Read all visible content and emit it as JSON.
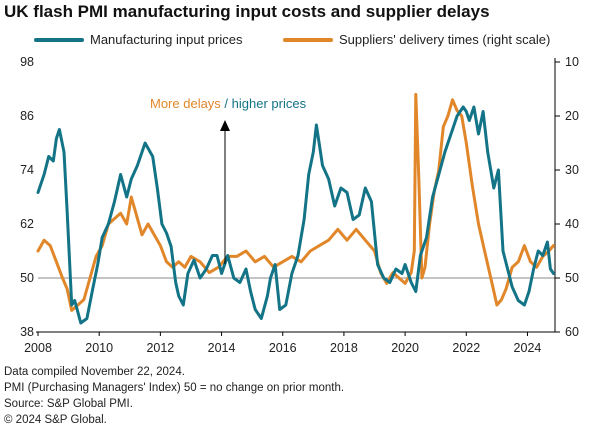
{
  "title": "UK flash PMI manufacturing input costs and supplier delays",
  "notes": [
    "Data compiled November 22, 2024.",
    "PMI (Purchasing Managers' Index) 50 = no change on prior month.",
    "Source: S&P Global PMI.",
    "© 2024 S&P Global."
  ],
  "colors": {
    "teal": "#137487",
    "orange": "#e1872a",
    "axis": "#000000"
  },
  "chart_data": {
    "type": "line",
    "x_ticks": [
      "2008",
      "2010",
      "2012",
      "2014",
      "2016",
      "2018",
      "2020",
      "2022",
      "2024"
    ],
    "xlim": [
      2008,
      2024.9
    ],
    "y_left": {
      "ticks": [
        "38",
        "50",
        "62",
        "74",
        "86",
        "98"
      ],
      "lim": [
        38,
        98
      ]
    },
    "y_right": {
      "ticks": [
        "10",
        "20",
        "30",
        "40",
        "50",
        "60"
      ],
      "lim": [
        10,
        60
      ],
      "reversed": true,
      "label": "right scale"
    },
    "reference_line_y": 50,
    "annotation": {
      "part1": "More delays",
      "sep": " / ",
      "part2": "higher prices"
    },
    "series": [
      {
        "name": "Manufacturing input prices",
        "axis": "left",
        "color": "#137487",
        "x": [
          2008.0,
          2008.2,
          2008.35,
          2008.5,
          2008.6,
          2008.7,
          2008.85,
          2008.95,
          2009.1,
          2009.2,
          2009.4,
          2009.6,
          2009.8,
          2009.95,
          2010.1,
          2010.3,
          2010.5,
          2010.7,
          2010.9,
          2011.05,
          2011.25,
          2011.5,
          2011.75,
          2011.9,
          2012.05,
          2012.2,
          2012.35,
          2012.5,
          2012.6,
          2012.75,
          2012.9,
          2013.1,
          2013.3,
          2013.5,
          2013.7,
          2013.85,
          2014.0,
          2014.2,
          2014.4,
          2014.6,
          2014.8,
          2014.95,
          2015.1,
          2015.3,
          2015.5,
          2015.6,
          2015.75,
          2015.9,
          2016.1,
          2016.3,
          2016.5,
          2016.7,
          2016.85,
          2017.0,
          2017.1,
          2017.3,
          2017.5,
          2017.7,
          2017.9,
          2018.1,
          2018.3,
          2018.5,
          2018.7,
          2018.9,
          2019.1,
          2019.3,
          2019.5,
          2019.7,
          2019.9,
          2020.0,
          2020.2,
          2020.35,
          2020.5,
          2020.7,
          2020.9,
          2021.1,
          2021.3,
          2021.5,
          2021.7,
          2021.9,
          2022.0,
          2022.1,
          2022.25,
          2022.4,
          2022.55,
          2022.7,
          2022.9,
          2023.05,
          2023.2,
          2023.35,
          2023.5,
          2023.7,
          2023.9,
          2024.05,
          2024.2,
          2024.35,
          2024.5,
          2024.65,
          2024.75,
          2024.85
        ],
        "y": [
          69,
          73,
          77,
          76,
          81,
          83,
          78,
          65,
          44,
          45,
          40,
          41,
          48,
          53,
          59,
          62,
          67,
          73,
          68,
          72,
          75,
          80,
          77,
          70,
          62,
          60,
          57,
          49,
          46,
          44,
          51,
          54,
          50,
          52,
          55,
          55,
          51,
          55,
          50,
          49,
          52,
          47,
          43,
          41,
          46,
          50,
          53,
          43,
          44,
          51,
          55,
          63,
          73,
          78,
          84,
          75,
          72,
          66,
          70,
          69,
          63,
          64,
          70,
          67,
          53,
          50,
          49,
          52,
          51,
          53,
          49,
          47,
          55,
          59,
          68,
          73,
          78,
          82,
          86,
          88,
          87,
          85,
          88,
          82,
          87,
          78,
          70,
          74,
          56,
          52,
          48,
          45,
          44,
          47,
          52,
          56,
          55,
          58,
          52,
          51
        ]
      },
      {
        "name": "Suppliers' delivery times (right scale)",
        "axis": "right",
        "color": "#e1872a",
        "x": [
          2008.0,
          2008.2,
          2008.4,
          2008.6,
          2008.8,
          2008.95,
          2009.1,
          2009.3,
          2009.5,
          2009.7,
          2009.9,
          2010.1,
          2010.3,
          2010.5,
          2010.7,
          2010.9,
          2011.05,
          2011.2,
          2011.4,
          2011.6,
          2011.8,
          2012.0,
          2012.2,
          2012.4,
          2012.6,
          2012.8,
          2013.0,
          2013.3,
          2013.6,
          2013.9,
          2014.2,
          2014.5,
          2014.8,
          2015.1,
          2015.4,
          2015.7,
          2016.0,
          2016.3,
          2016.6,
          2016.9,
          2017.2,
          2017.5,
          2017.8,
          2018.1,
          2018.4,
          2018.7,
          2019.0,
          2019.2,
          2019.4,
          2019.6,
          2019.8,
          2020.0,
          2020.2,
          2020.3,
          2020.35,
          2020.45,
          2020.55,
          2020.65,
          2020.8,
          2020.95,
          2021.1,
          2021.25,
          2021.4,
          2021.55,
          2021.7,
          2021.85,
          2022.0,
          2022.2,
          2022.4,
          2022.6,
          2022.8,
          2023.0,
          2023.15,
          2023.3,
          2023.5,
          2023.7,
          2023.9,
          2024.1,
          2024.3,
          2024.5,
          2024.7,
          2024.85
        ],
        "y": [
          45,
          43,
          44,
          47,
          50,
          52,
          56,
          55,
          54,
          50,
          46,
          44,
          40,
          39,
          38,
          40,
          35,
          38,
          42,
          40,
          42,
          44,
          47,
          48,
          47,
          48,
          46,
          47,
          49,
          48,
          46,
          46,
          45,
          47,
          46,
          48,
          47,
          46,
          47,
          45,
          44,
          43,
          41,
          43,
          41,
          43,
          45,
          49,
          51,
          49,
          50,
          51,
          49,
          45,
          16,
          32,
          50,
          48,
          40,
          34,
          30,
          22,
          20,
          17,
          19,
          20,
          25,
          33,
          40,
          45,
          50,
          55,
          54,
          52,
          48,
          47,
          44,
          47,
          48,
          46,
          45,
          44
        ]
      }
    ]
  }
}
